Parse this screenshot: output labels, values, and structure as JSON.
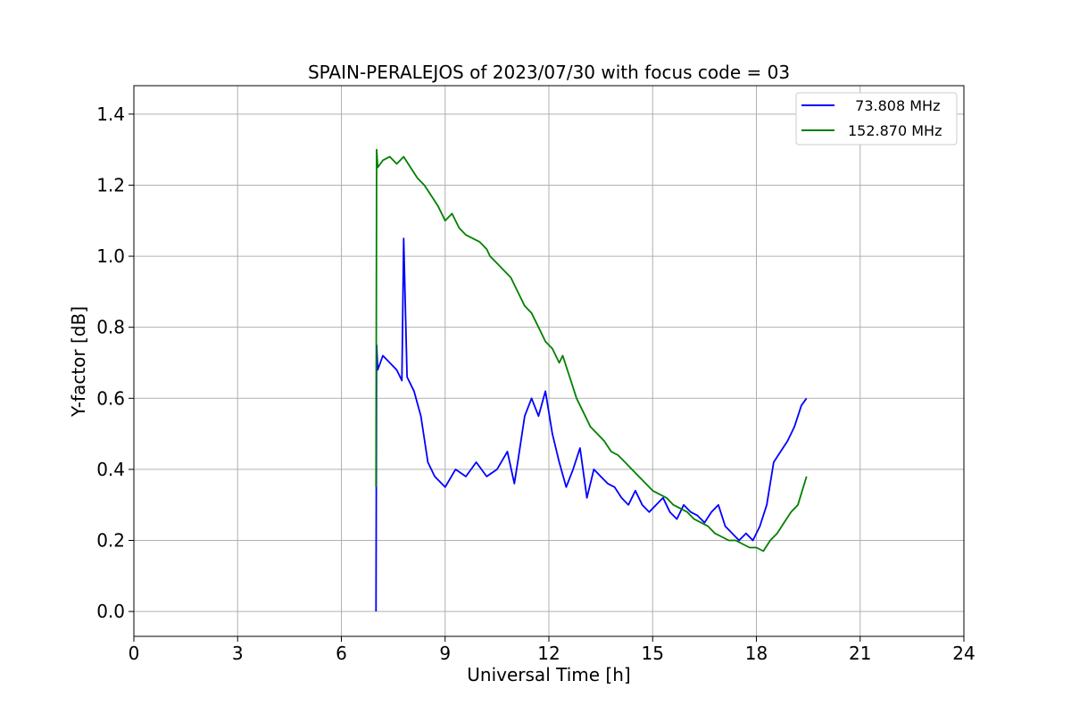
{
  "chart_data": {
    "type": "line",
    "title": "SPAIN-PERALEJOS of 2023/07/30 with focus code = 03",
    "xlabel": "Universal Time [h]",
    "ylabel": "Y-factor [dB]",
    "xlim": [
      0,
      24
    ],
    "ylim": [
      -0.07,
      1.48
    ],
    "xticks": [
      0,
      3,
      6,
      9,
      12,
      15,
      18,
      21,
      24
    ],
    "yticks": [
      0.0,
      0.2,
      0.4,
      0.6,
      0.8,
      1.0,
      1.2,
      1.4
    ],
    "xtick_labels": [
      "0",
      "3",
      "6",
      "9",
      "12",
      "15",
      "18",
      "21",
      "24"
    ],
    "ytick_labels": [
      "0.0",
      "0.2",
      "0.4",
      "0.6",
      "0.8",
      "1.0",
      "1.2",
      "1.4"
    ],
    "grid": true,
    "legend_position": "top-right",
    "series": [
      {
        "name": "  73.808 MHz",
        "color": "#0000ff",
        "x": [
          7.0,
          7.02,
          7.05,
          7.2,
          7.4,
          7.6,
          7.75,
          7.8,
          7.9,
          8.1,
          8.3,
          8.5,
          8.7,
          9.0,
          9.3,
          9.6,
          9.9,
          10.2,
          10.5,
          10.8,
          11.0,
          11.1,
          11.3,
          11.5,
          11.7,
          11.9,
          12.1,
          12.3,
          12.5,
          12.7,
          12.9,
          13.1,
          13.3,
          13.5,
          13.7,
          13.9,
          14.1,
          14.3,
          14.5,
          14.7,
          14.9,
          15.1,
          15.3,
          15.5,
          15.7,
          15.9,
          16.1,
          16.3,
          16.5,
          16.7,
          16.9,
          17.1,
          17.3,
          17.5,
          17.7,
          17.9,
          18.1,
          18.3,
          18.5,
          18.7,
          18.9,
          19.1,
          19.3,
          19.45
        ],
        "y": [
          0.0,
          0.75,
          0.68,
          0.72,
          0.7,
          0.68,
          0.65,
          1.05,
          0.66,
          0.62,
          0.55,
          0.42,
          0.38,
          0.35,
          0.4,
          0.38,
          0.42,
          0.38,
          0.4,
          0.45,
          0.36,
          0.42,
          0.55,
          0.6,
          0.55,
          0.62,
          0.5,
          0.42,
          0.35,
          0.4,
          0.46,
          0.32,
          0.4,
          0.38,
          0.36,
          0.35,
          0.32,
          0.3,
          0.34,
          0.3,
          0.28,
          0.3,
          0.32,
          0.28,
          0.26,
          0.3,
          0.28,
          0.27,
          0.25,
          0.28,
          0.3,
          0.24,
          0.22,
          0.2,
          0.22,
          0.2,
          0.24,
          0.3,
          0.42,
          0.45,
          0.48,
          0.52,
          0.58,
          0.6
        ]
      },
      {
        "name": "152.870 MHz",
        "color": "#008000",
        "x": [
          7.0,
          7.02,
          7.05,
          7.2,
          7.4,
          7.6,
          7.8,
          8.0,
          8.2,
          8.4,
          8.6,
          8.8,
          9.0,
          9.2,
          9.4,
          9.6,
          9.8,
          10.0,
          10.2,
          10.3,
          10.5,
          10.7,
          10.9,
          11.1,
          11.3,
          11.5,
          11.7,
          11.9,
          12.1,
          12.3,
          12.4,
          12.6,
          12.8,
          13.0,
          13.2,
          13.4,
          13.6,
          13.8,
          14.0,
          14.2,
          14.4,
          14.6,
          14.8,
          15.0,
          15.2,
          15.4,
          15.6,
          15.8,
          16.0,
          16.2,
          16.4,
          16.6,
          16.8,
          17.0,
          17.2,
          17.4,
          17.6,
          17.8,
          18.0,
          18.2,
          18.4,
          18.6,
          18.8,
          19.0,
          19.2,
          19.45
        ],
        "y": [
          0.35,
          1.3,
          1.25,
          1.27,
          1.28,
          1.26,
          1.28,
          1.25,
          1.22,
          1.2,
          1.17,
          1.14,
          1.1,
          1.12,
          1.08,
          1.06,
          1.05,
          1.04,
          1.02,
          1.0,
          0.98,
          0.96,
          0.94,
          0.9,
          0.86,
          0.84,
          0.8,
          0.76,
          0.74,
          0.7,
          0.72,
          0.66,
          0.6,
          0.56,
          0.52,
          0.5,
          0.48,
          0.45,
          0.44,
          0.42,
          0.4,
          0.38,
          0.36,
          0.34,
          0.33,
          0.32,
          0.3,
          0.29,
          0.28,
          0.26,
          0.25,
          0.24,
          0.22,
          0.21,
          0.2,
          0.2,
          0.19,
          0.18,
          0.18,
          0.17,
          0.2,
          0.22,
          0.25,
          0.28,
          0.3,
          0.38
        ]
      }
    ]
  }
}
